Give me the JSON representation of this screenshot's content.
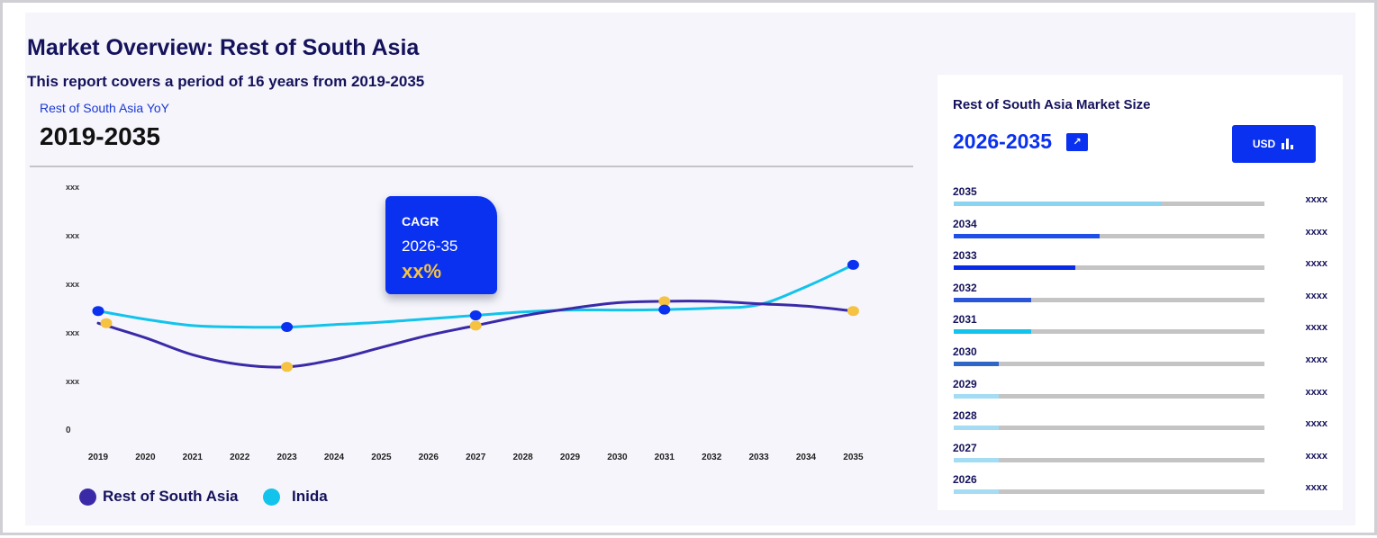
{
  "header": {
    "title": "Market Overview: Rest of South Asia",
    "subtitle": "This report covers a period of 16 years from 2019-2035"
  },
  "yoy": {
    "label": "Rest of South Asia YoY",
    "range": "2019-2035"
  },
  "tooltip": {
    "label": "CAGR",
    "period": "2026-35",
    "value": "xx%"
  },
  "side_panel": {
    "title": "Rest of South Asia Market Size",
    "range": "2026-2035",
    "expand_icon": "arrow-up-right-icon",
    "currency_button": "USD",
    "currency_icon": "bar-chart-icon",
    "rows": [
      {
        "year": "2035",
        "value": "xxxx",
        "fill": 0.67,
        "color": "#8ad4f2"
      },
      {
        "year": "2034",
        "value": "xxxx",
        "fill": 0.47,
        "color": "#1f4fe6"
      },
      {
        "year": "2033",
        "value": "xxxx",
        "fill": 0.39,
        "color": "#0a2be6"
      },
      {
        "year": "2032",
        "value": "xxxx",
        "fill": 0.25,
        "color": "#2b55d9"
      },
      {
        "year": "2031",
        "value": "xxxx",
        "fill": 0.25,
        "color": "#12c3ec"
      },
      {
        "year": "2030",
        "value": "xxxx",
        "fill": 0.145,
        "color": "#2f67c8"
      },
      {
        "year": "2029",
        "value": "xxxx",
        "fill": 0.145,
        "color": "#a3dcf3"
      },
      {
        "year": "2028",
        "value": "xxxx",
        "fill": 0.145,
        "color": "#a3dcf3"
      },
      {
        "year": "2027",
        "value": "xxxx",
        "fill": 0.145,
        "color": "#a3dcf3"
      },
      {
        "year": "2026",
        "value": "xxxx",
        "fill": 0.145,
        "color": "#a3dcf3"
      }
    ]
  },
  "chart_data": {
    "type": "line",
    "x": [
      "2019",
      "2020",
      "2021",
      "2022",
      "2023",
      "2024",
      "2025",
      "2026",
      "2027",
      "2028",
      "2029",
      "2030",
      "2031",
      "2032",
      "2033",
      "2034",
      "2035"
    ],
    "y_ticks": [
      "0",
      "xxx",
      "xxx",
      "xxx",
      "xxx",
      "xxx"
    ],
    "ylim": [
      0,
      5
    ],
    "grid": false,
    "legend_position": "bottom-left",
    "series": [
      {
        "name": "Rest of South Asia",
        "color": "#3a2aa8",
        "marker_color": "#f5c242",
        "values": [
          2.2,
          1.9,
          1.55,
          1.35,
          1.3,
          1.45,
          1.7,
          1.95,
          2.15,
          2.35,
          2.5,
          2.62,
          2.65,
          2.65,
          2.6,
          2.55,
          2.45
        ],
        "marker_points": [
          [
            2019,
            2.2
          ],
          [
            2023,
            1.3
          ],
          [
            2027,
            2.15
          ],
          [
            2031,
            2.65
          ],
          [
            2035,
            2.45
          ]
        ]
      },
      {
        "name": "Inida",
        "color": "#12c3ec",
        "marker_color": "#0a31f0",
        "values": [
          2.45,
          2.28,
          2.15,
          2.12,
          2.12,
          2.17,
          2.22,
          2.29,
          2.36,
          2.43,
          2.47,
          2.47,
          2.48,
          2.51,
          2.58,
          2.95,
          3.4
        ],
        "marker_points": [
          [
            2019,
            2.45
          ],
          [
            2023,
            2.12
          ],
          [
            2027,
            2.36
          ],
          [
            2031,
            2.48
          ],
          [
            2035,
            3.4
          ]
        ]
      }
    ]
  }
}
